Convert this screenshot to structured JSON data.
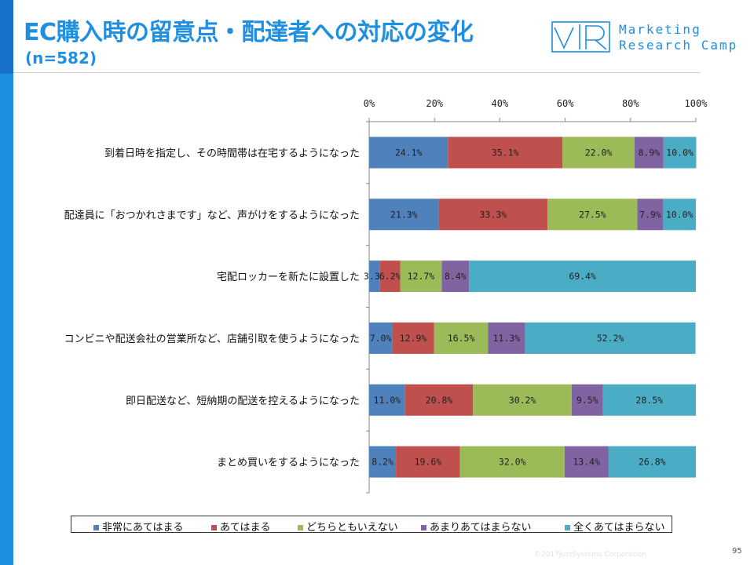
{
  "header": {
    "title": "EC購入時の留意点・配達者への対応の変化",
    "subtitle": "(n=582)"
  },
  "brand": {
    "line1": "Marketing",
    "line2": "Research Camp",
    "color": "#1e8fe1"
  },
  "footer": {
    "copyright": "©2017JustSystems Corporation",
    "page_number": "95"
  },
  "chart_data": {
    "type": "bar",
    "orientation": "horizontal",
    "stacked": true,
    "percent_scale": true,
    "xlim": [
      0,
      100
    ],
    "ticks": [
      "0%",
      "20%",
      "40%",
      "60%",
      "80%",
      "100%"
    ],
    "tick_values": [
      0,
      20,
      40,
      60,
      80,
      100
    ],
    "grid": false,
    "legend_position": "bottom",
    "categories": [
      "到着日時を指定し、その時間帯は在宅するようになった",
      "配達員に「おつかれさまです」など、声がけをするようになった",
      "宅配ロッカーを新たに設置した",
      "コンビニや配送会社の営業所など、店舗引取を使うようになった",
      "即日配送など、短納期の配送を控えるようになった",
      "まとめ買いをするようになった"
    ],
    "series": [
      {
        "name": "非常にあてはまる",
        "color": "#4f81bd",
        "values": [
          24.1,
          21.3,
          3.3,
          7.0,
          11.0,
          8.2
        ],
        "labels": [
          "24.1%",
          "21.3%",
          "3.3%",
          "7.0%",
          "11.0%",
          "8.2%"
        ]
      },
      {
        "name": "あてはまる",
        "color": "#c0504d",
        "values": [
          35.1,
          33.3,
          6.2,
          12.9,
          20.8,
          19.6
        ],
        "labels": [
          "35.1%",
          "33.3%",
          "6.2%",
          "12.9%",
          "20.8%",
          "19.6%"
        ]
      },
      {
        "name": "どちらともいえない",
        "color": "#9bbb59",
        "values": [
          22.0,
          27.5,
          12.7,
          16.5,
          30.2,
          32.0
        ],
        "labels": [
          "22.0%",
          "27.5%",
          "12.7%",
          "16.5%",
          "30.2%",
          "32.0%"
        ]
      },
      {
        "name": "あまりあてはまらない",
        "color": "#8064a2",
        "values": [
          8.9,
          7.9,
          8.4,
          11.3,
          9.5,
          13.4
        ],
        "labels": [
          "8.9%",
          "7.9%",
          "8.4%",
          "11.3%",
          "9.5%",
          "13.4%"
        ]
      },
      {
        "name": "全くあてはまらない",
        "color": "#4bacc6",
        "values": [
          10.0,
          10.0,
          69.4,
          52.2,
          28.5,
          26.8
        ],
        "labels": [
          "10.0%",
          "10.0%",
          "69.4%",
          "52.2%",
          "28.5%",
          "26.8%"
        ]
      }
    ]
  }
}
